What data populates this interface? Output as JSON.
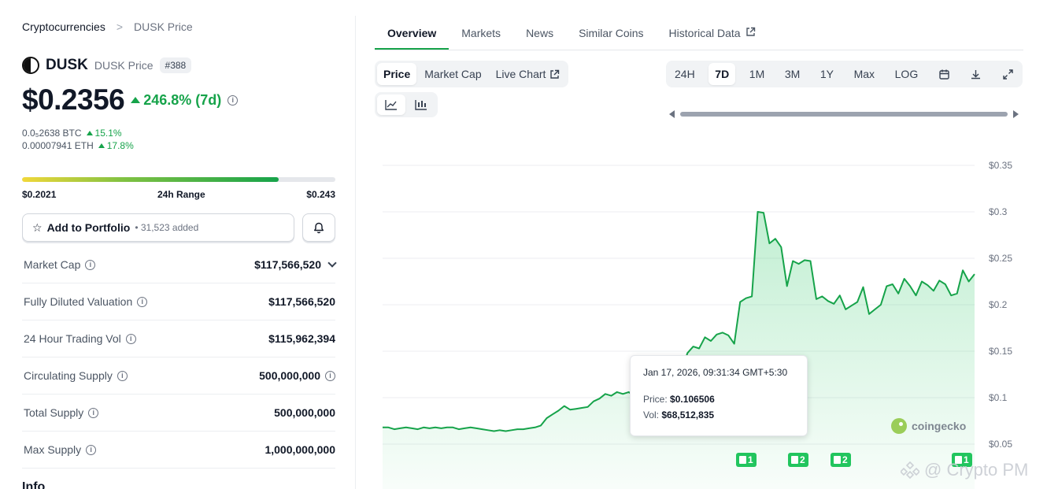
{
  "breadcrumb": {
    "root": "Cryptocurrencies",
    "separator": ">",
    "current": "DUSK Price"
  },
  "coin": {
    "symbol": "DUSK",
    "name_sub": "DUSK Price",
    "rank": "#388"
  },
  "price": {
    "value": "$0.2356",
    "change": "246.8% (7d)"
  },
  "sub_prices": [
    {
      "value": "0.0₅2638 BTC",
      "change": "15.1%"
    },
    {
      "value": "0.00007941 ETH",
      "change": "17.8%"
    }
  ],
  "range": {
    "low": "$0.2021",
    "label": "24h Range",
    "high": "$0.243",
    "position_pct": 82
  },
  "portfolio": {
    "label": "Add to Portfolio",
    "added": "• 31,523 added"
  },
  "stats": [
    {
      "key": "Market Cap",
      "value": "$117,566,520"
    },
    {
      "key": "Fully Diluted Valuation",
      "value": "$117,566,520"
    },
    {
      "key": "24 Hour Trading Vol",
      "value": "$115,962,394"
    },
    {
      "key": "Circulating Supply",
      "value": "500,000,000"
    },
    {
      "key": "Total Supply",
      "value": "500,000,000"
    },
    {
      "key": "Max Supply",
      "value": "1,000,000,000"
    }
  ],
  "info_heading": "Info",
  "tabs": [
    "Overview",
    "Markets",
    "News",
    "Similar Coins",
    "Historical Data"
  ],
  "chart_modes": [
    "Price",
    "Market Cap",
    "Live Chart"
  ],
  "ranges": [
    "24H",
    "7D",
    "1M",
    "3M",
    "1Y",
    "Max",
    "LOG"
  ],
  "tooltip": {
    "date": "Jan 17, 2026, 09:31:34 GMT+5:30",
    "price_label": "Price:",
    "price": "$0.106506",
    "vol_label": "Vol:",
    "vol": "$68,512,835"
  },
  "brand": "coingecko",
  "news_badges": [
    "1",
    "2",
    "2",
    "1"
  ],
  "watermark": "@ Crypto PM",
  "colors": {
    "accent": "#16a34a",
    "line": "#16a34a",
    "fill": "#dcfce7"
  },
  "chart_data": {
    "type": "area",
    "title": "",
    "xlabel": "",
    "ylabel": "",
    "ylim": [
      0.05,
      0.35
    ],
    "yticks": [
      "$0.35",
      "$0.3",
      "$0.25",
      "$0.2",
      "$0.15",
      "$0.1",
      "$0.05"
    ],
    "ytick_values": [
      0.35,
      0.3,
      0.25,
      0.2,
      0.15,
      0.1,
      0.05
    ],
    "series": [
      {
        "values": [
          0.068,
          0.068,
          0.066,
          0.067,
          0.068,
          0.067,
          0.066,
          0.068,
          0.067,
          0.068,
          0.067,
          0.068,
          0.068,
          0.066,
          0.067,
          0.068,
          0.067,
          0.066,
          0.065,
          0.064,
          0.065,
          0.064,
          0.065,
          0.066,
          0.066,
          0.067,
          0.068,
          0.07,
          0.078,
          0.082,
          0.086,
          0.091,
          0.087,
          0.088,
          0.089,
          0.09,
          0.096,
          0.099,
          0.104,
          0.102,
          0.106,
          0.104,
          0.106,
          0.101,
          0.099,
          0.106,
          0.113,
          0.12,
          0.117,
          0.119,
          0.132,
          0.126,
          0.148,
          0.155,
          0.153,
          0.165,
          0.161,
          0.168,
          0.17,
          0.167,
          0.158,
          0.203,
          0.207,
          0.209,
          0.3,
          0.299,
          0.266,
          0.271,
          0.262,
          0.22,
          0.247,
          0.244,
          0.248,
          0.247,
          0.206,
          0.209,
          0.204,
          0.201,
          0.21,
          0.195,
          0.199,
          0.203,
          0.219,
          0.19,
          0.195,
          0.2,
          0.22,
          0.222,
          0.212,
          0.228,
          0.22,
          0.21,
          0.225,
          0.221,
          0.215,
          0.226,
          0.222,
          0.21,
          0.212,
          0.237,
          0.225,
          0.233
        ]
      }
    ]
  }
}
